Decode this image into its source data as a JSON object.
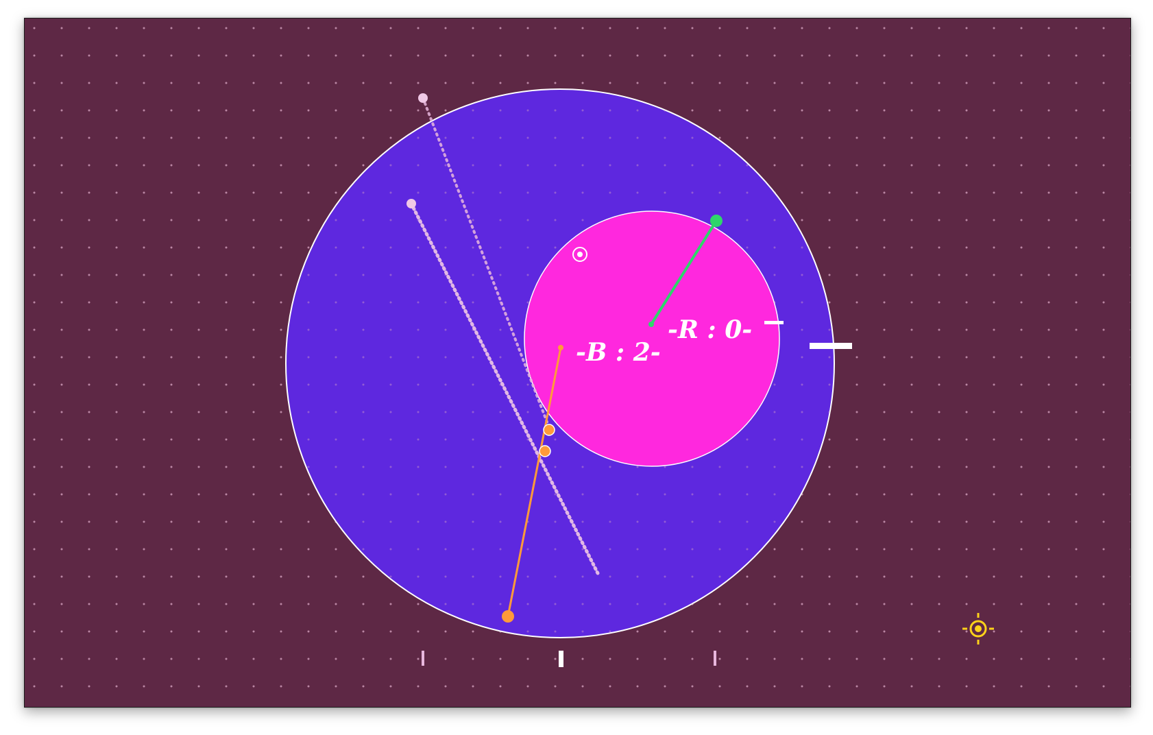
{
  "game": {
    "score_blue": "-B : 2-",
    "score_red": "-R : 0-"
  },
  "colors": {
    "background": "#5e2845",
    "background_dots": "#d9a7c4",
    "big_circle_fill": "#5e28df",
    "big_circle_stroke": "#ffffff",
    "small_circle_fill": "#ff28de",
    "small_circle_stroke": "#ffffff",
    "green_stick": "#2ed66a",
    "orange_stick": "#ff9a3a",
    "trail_dots": "#e8b7dd",
    "target_marker": "#ffd21a",
    "label_text": "#ffffff"
  },
  "icons": {
    "target_marker": "crosshair-target-icon",
    "ring_marker": "ring-marker-icon"
  }
}
